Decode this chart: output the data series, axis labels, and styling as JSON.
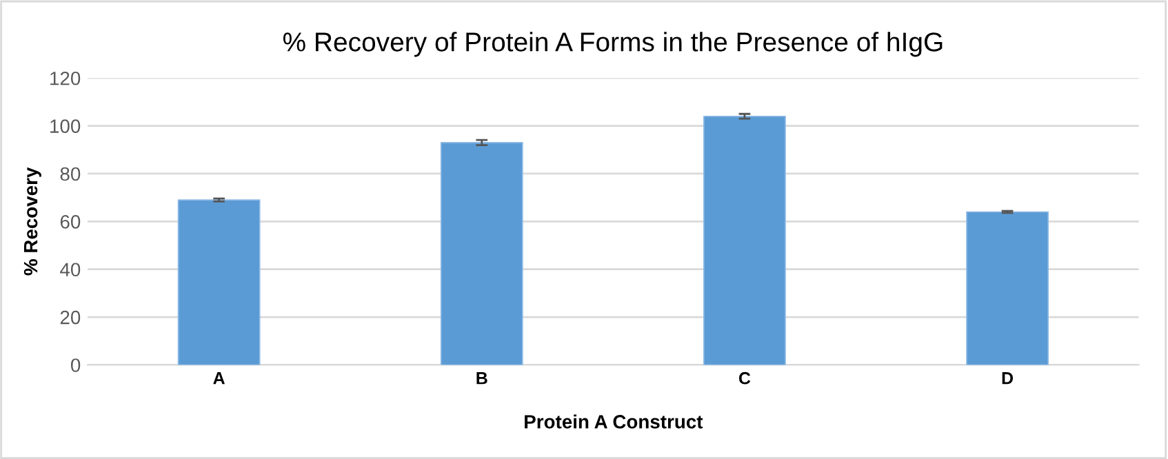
{
  "chart_data": {
    "type": "bar",
    "title": "% Recovery of Protein A Forms in the Presence of hIgG",
    "xlabel": "Protein A Construct",
    "ylabel": "% Recovery",
    "categories": [
      "A",
      "B",
      "C",
      "D"
    ],
    "values": [
      69,
      93,
      104,
      64
    ],
    "errors": [
      0.6,
      1.1,
      1.0,
      0.4
    ],
    "color": "#5b9bd5",
    "ylim": [
      0,
      120
    ],
    "yticks": [
      0,
      20,
      40,
      60,
      80,
      100,
      120
    ],
    "grid": "y"
  }
}
